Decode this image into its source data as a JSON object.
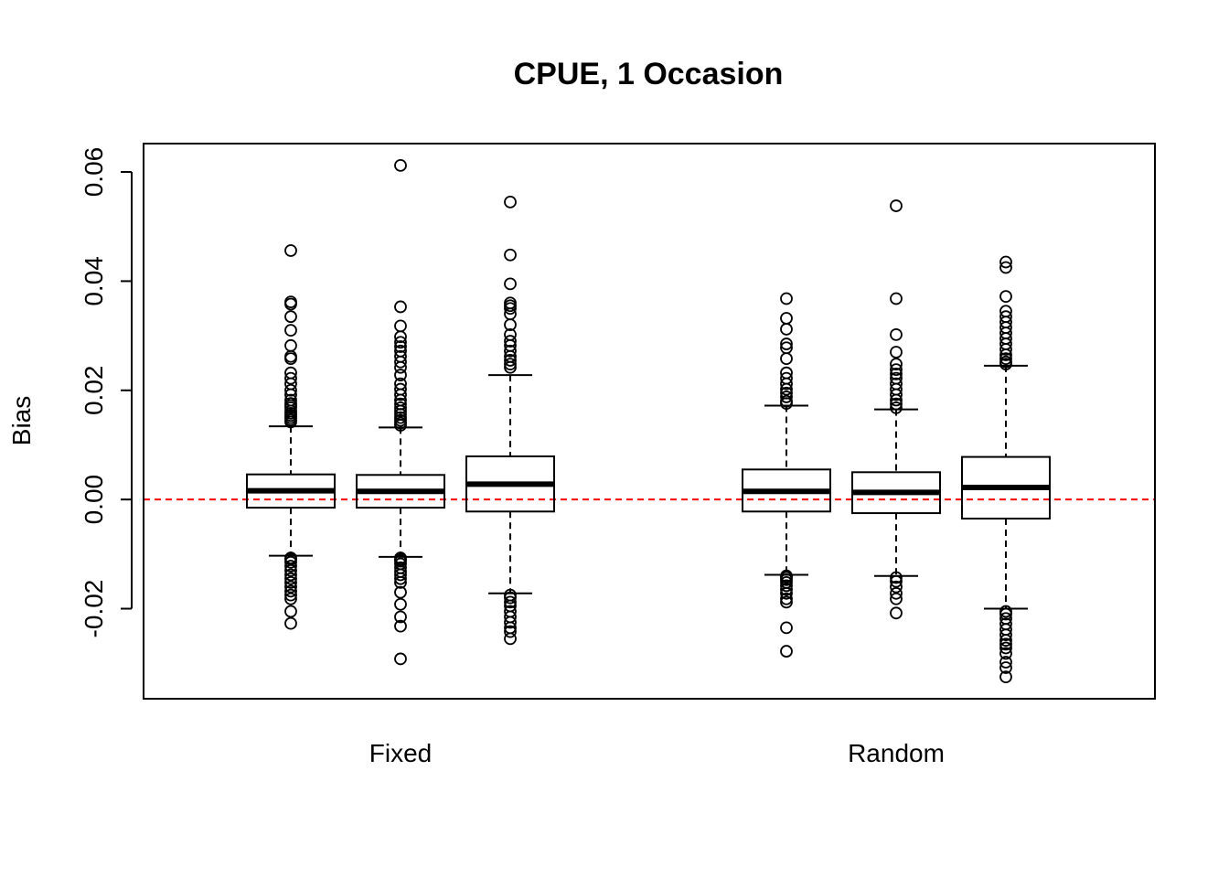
{
  "chart_data": {
    "type": "boxplot",
    "title": "CPUE, 1 Occasion",
    "xlabel": "",
    "ylabel": "Bias",
    "ylim": [
      -0.0365,
      0.0652
    ],
    "yticks": [
      -0.02,
      0.0,
      0.02,
      0.04,
      0.06
    ],
    "ytick_labels": [
      "-0.02",
      "0.00",
      "0.02",
      "0.04",
      "0.06"
    ],
    "grid": false,
    "legend": "none",
    "reference_line": {
      "y": 0.0,
      "color": "#ff0000",
      "style": "dashed"
    },
    "groups": [
      {
        "label": "Fixed",
        "boxes": [
          {
            "q1": -0.0015,
            "median": 0.0016,
            "q3": 0.0046,
            "whisker_low": -0.0103,
            "whisker_high": 0.0134,
            "outliers": [
              0.0456,
              0.0362,
              0.0358,
              0.0335,
              0.031,
              0.0282,
              0.0262,
              0.0258,
              0.0232,
              0.0222,
              0.0212,
              0.02,
              0.0192,
              0.0182,
              0.0176,
              0.0172,
              0.0168,
              0.0162,
              0.0158,
              0.0154,
              0.015,
              0.0146,
              0.0142,
              -0.0107,
              -0.011,
              -0.0115,
              -0.0122,
              -0.013,
              -0.0138,
              -0.0145,
              -0.0152,
              -0.016,
              -0.0168,
              -0.0175,
              -0.0182,
              -0.0205,
              -0.0227
            ]
          },
          {
            "q1": -0.0015,
            "median": 0.0015,
            "q3": 0.0045,
            "whisker_low": -0.0105,
            "whisker_high": 0.0132,
            "outliers": [
              0.0612,
              0.0353,
              0.0318,
              0.0298,
              0.0288,
              0.028,
              0.0272,
              0.0262,
              0.0252,
              0.0242,
              0.0228,
              0.0212,
              0.0202,
              0.0192,
              0.0182,
              0.0175,
              0.0168,
              0.0162,
              0.0156,
              0.015,
              0.0145,
              0.014,
              0.0136,
              -0.0107,
              -0.011,
              -0.0113,
              -0.0118,
              -0.0125,
              -0.0132,
              -0.0138,
              -0.0145,
              -0.0152,
              -0.017,
              -0.0192,
              -0.0215,
              -0.0232,
              -0.0292
            ]
          },
          {
            "q1": -0.0022,
            "median": 0.0028,
            "q3": 0.0079,
            "whisker_low": -0.0172,
            "whisker_high": 0.0228,
            "outliers": [
              0.0545,
              0.0448,
              0.0395,
              0.036,
              0.0355,
              0.035,
              0.034,
              0.032,
              0.0302,
              0.029,
              0.0282,
              0.0272,
              0.0262,
              0.0255,
              0.0248,
              0.0242,
              -0.0175,
              -0.018,
              -0.0188,
              -0.0195,
              -0.0205,
              -0.0215,
              -0.0225,
              -0.0235,
              -0.0242,
              -0.0255
            ]
          }
        ]
      },
      {
        "label": "Random",
        "boxes": [
          {
            "q1": -0.0022,
            "median": 0.0015,
            "q3": 0.0055,
            "whisker_low": -0.0138,
            "whisker_high": 0.0172,
            "outliers": [
              0.0368,
              0.0332,
              0.0312,
              0.0285,
              0.0278,
              0.0258,
              0.0232,
              0.0222,
              0.0212,
              0.0202,
              0.0195,
              0.0188,
              0.018,
              0.0176,
              -0.014,
              -0.0143,
              -0.0147,
              -0.0152,
              -0.0158,
              -0.0165,
              -0.0172,
              -0.0182,
              -0.0188,
              -0.0235,
              -0.0278
            ]
          },
          {
            "q1": -0.0025,
            "median": 0.0013,
            "q3": 0.005,
            "whisker_low": -0.014,
            "whisker_high": 0.0165,
            "outliers": [
              0.0538,
              0.0368,
              0.0302,
              0.027,
              0.0248,
              0.0238,
              0.023,
              0.0222,
              0.0212,
              0.0202,
              0.0192,
              0.0182,
              0.0175,
              0.0168,
              -0.0143,
              -0.015,
              -0.016,
              -0.0172,
              -0.0182,
              -0.0208
            ]
          },
          {
            "q1": -0.0035,
            "median": 0.0022,
            "q3": 0.0078,
            "whisker_low": -0.02,
            "whisker_high": 0.0245,
            "outliers": [
              0.0435,
              0.0425,
              0.0372,
              0.0345,
              0.0335,
              0.0325,
              0.0315,
              0.0305,
              0.0295,
              0.0285,
              0.0275,
              0.0265,
              0.0258,
              0.0252,
              0.0248,
              -0.0205,
              -0.021,
              -0.0218,
              -0.0228,
              -0.0238,
              -0.0248,
              -0.0258,
              -0.0265,
              -0.0272,
              -0.0282,
              -0.0298,
              -0.0308,
              -0.0325
            ]
          }
        ]
      }
    ]
  }
}
